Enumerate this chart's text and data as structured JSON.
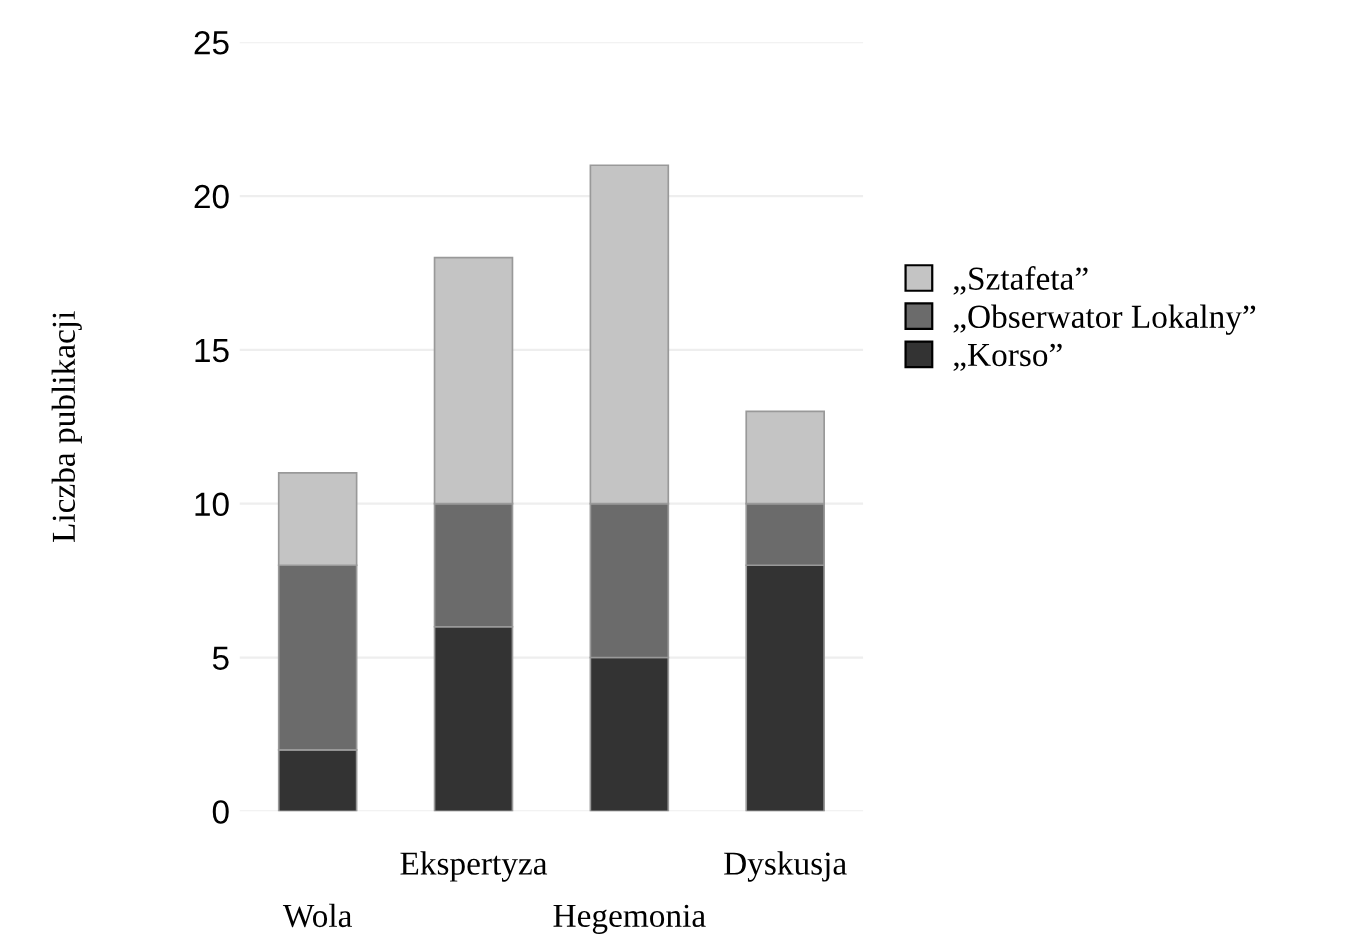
{
  "chart_data": {
    "type": "bar",
    "stacked": true,
    "ylabel": "Liczba publikacji",
    "categories": [
      "Wola",
      "Ekspertyza",
      "Hegemonia",
      "Dyskusja"
    ],
    "series": [
      {
        "name": "„Korso”",
        "color": "#333333",
        "values": [
          2,
          6,
          5,
          8
        ]
      },
      {
        "name": "„Obserwator Lokalny”",
        "color": "#6b6b6b",
        "values": [
          6,
          4,
          5,
          2
        ]
      },
      {
        "name": "„Sztafeta”",
        "color": "#c4c4c4",
        "values": [
          3,
          8,
          11,
          3
        ]
      }
    ],
    "ylim": [
      0,
      25
    ],
    "yticks": [
      0,
      5,
      10,
      15,
      20,
      25
    ],
    "grid": "y",
    "legend": "right"
  }
}
